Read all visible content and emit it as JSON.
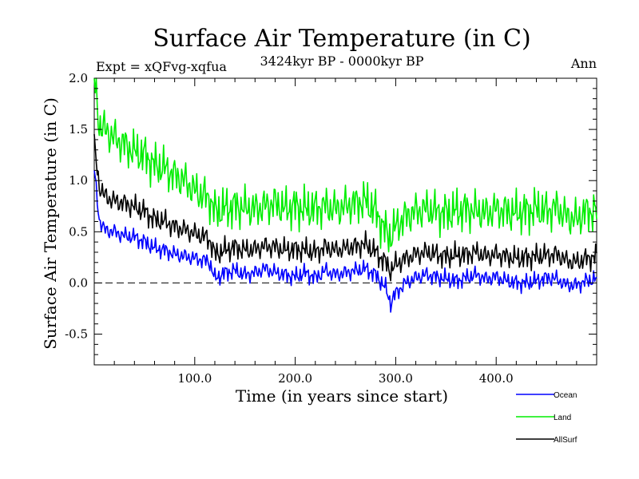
{
  "chart_data": {
    "type": "line",
    "title": "Surface Air Temperature (in C)",
    "subtitle": "3424kyr BP - 0000kyr BP",
    "experiment_label": "Expt = xQFvg-xqfua",
    "season_label": "Ann",
    "xlabel": "Time (in years since start)",
    "ylabel": "Surface Air Temperature (in C)",
    "xlim": [
      0,
      500
    ],
    "ylim": [
      -0.8,
      2.0
    ],
    "x_ticks": [
      100,
      200,
      300,
      400
    ],
    "x_tick_labels": [
      "100.0",
      "200.0",
      "300.0",
      "400.0"
    ],
    "y_ticks": [
      -0.5,
      0.0,
      0.5,
      1.0,
      1.5,
      2.0
    ],
    "y_tick_labels": [
      "-0.5",
      "0.0",
      "0.5",
      "1.0",
      "1.5",
      "2.0"
    ],
    "reference_line": 0.0,
    "legend_position": "bottom-right, below plot",
    "series": [
      {
        "name": "Ocean",
        "color": "#0000ff",
        "x": [
          0,
          5,
          10,
          20,
          30,
          40,
          50,
          60,
          70,
          80,
          90,
          100,
          110,
          115,
          120,
          130,
          140,
          150,
          160,
          170,
          180,
          190,
          200,
          210,
          220,
          230,
          240,
          250,
          260,
          270,
          280,
          290,
          295,
          300,
          310,
          320,
          330,
          340,
          350,
          360,
          370,
          380,
          390,
          400,
          410,
          420,
          430,
          440,
          450,
          460,
          470,
          480,
          490,
          500
        ],
        "values": [
          1.1,
          0.62,
          0.52,
          0.5,
          0.46,
          0.45,
          0.4,
          0.34,
          0.32,
          0.28,
          0.26,
          0.24,
          0.22,
          0.2,
          0.04,
          0.1,
          0.12,
          0.08,
          0.1,
          0.14,
          0.1,
          0.08,
          0.06,
          0.1,
          0.05,
          0.12,
          0.08,
          0.1,
          0.12,
          0.14,
          0.08,
          -0.05,
          -0.2,
          -0.1,
          0.0,
          0.05,
          0.08,
          0.06,
          0.04,
          0.02,
          0.05,
          0.08,
          0.04,
          0.06,
          0.02,
          0.0,
          0.0,
          0.02,
          0.05,
          0.04,
          -0.02,
          -0.02,
          0.02,
          0.04
        ]
      },
      {
        "name": "Land",
        "color": "#00ee00",
        "x": [
          0,
          5,
          10,
          20,
          30,
          40,
          50,
          60,
          70,
          80,
          90,
          100,
          110,
          115,
          120,
          130,
          140,
          150,
          160,
          170,
          180,
          190,
          200,
          210,
          220,
          230,
          240,
          250,
          260,
          270,
          280,
          290,
          295,
          300,
          310,
          320,
          330,
          340,
          350,
          360,
          370,
          380,
          390,
          400,
          410,
          420,
          430,
          440,
          450,
          460,
          470,
          480,
          490,
          500
        ],
        "values": [
          2.0,
          1.55,
          1.5,
          1.42,
          1.35,
          1.28,
          1.25,
          1.15,
          1.12,
          1.05,
          1.0,
          0.9,
          0.85,
          0.82,
          0.7,
          0.72,
          0.75,
          0.73,
          0.72,
          0.75,
          0.78,
          0.72,
          0.75,
          0.72,
          0.73,
          0.75,
          0.72,
          0.75,
          0.78,
          0.8,
          0.7,
          0.5,
          0.45,
          0.55,
          0.65,
          0.7,
          0.72,
          0.7,
          0.68,
          0.7,
          0.72,
          0.7,
          0.68,
          0.72,
          0.7,
          0.68,
          0.7,
          0.72,
          0.7,
          0.74,
          0.65,
          0.62,
          0.7,
          0.7
        ]
      },
      {
        "name": "AllSurf",
        "color": "#000000",
        "x": [
          0,
          5,
          10,
          20,
          30,
          40,
          50,
          60,
          70,
          80,
          90,
          100,
          110,
          115,
          120,
          130,
          140,
          150,
          160,
          170,
          180,
          190,
          200,
          210,
          220,
          230,
          240,
          250,
          260,
          270,
          280,
          290,
          295,
          300,
          310,
          320,
          330,
          340,
          350,
          360,
          370,
          380,
          390,
          400,
          410,
          420,
          430,
          440,
          450,
          460,
          470,
          480,
          490,
          500
        ],
        "values": [
          1.35,
          0.95,
          0.85,
          0.8,
          0.78,
          0.74,
          0.7,
          0.62,
          0.6,
          0.55,
          0.52,
          0.48,
          0.45,
          0.42,
          0.28,
          0.32,
          0.35,
          0.32,
          0.33,
          0.36,
          0.35,
          0.32,
          0.33,
          0.32,
          0.3,
          0.35,
          0.32,
          0.34,
          0.36,
          0.38,
          0.3,
          0.2,
          0.12,
          0.18,
          0.24,
          0.28,
          0.3,
          0.28,
          0.26,
          0.27,
          0.28,
          0.3,
          0.26,
          0.28,
          0.26,
          0.24,
          0.25,
          0.26,
          0.27,
          0.28,
          0.22,
          0.2,
          0.24,
          0.26
        ]
      }
    ]
  }
}
